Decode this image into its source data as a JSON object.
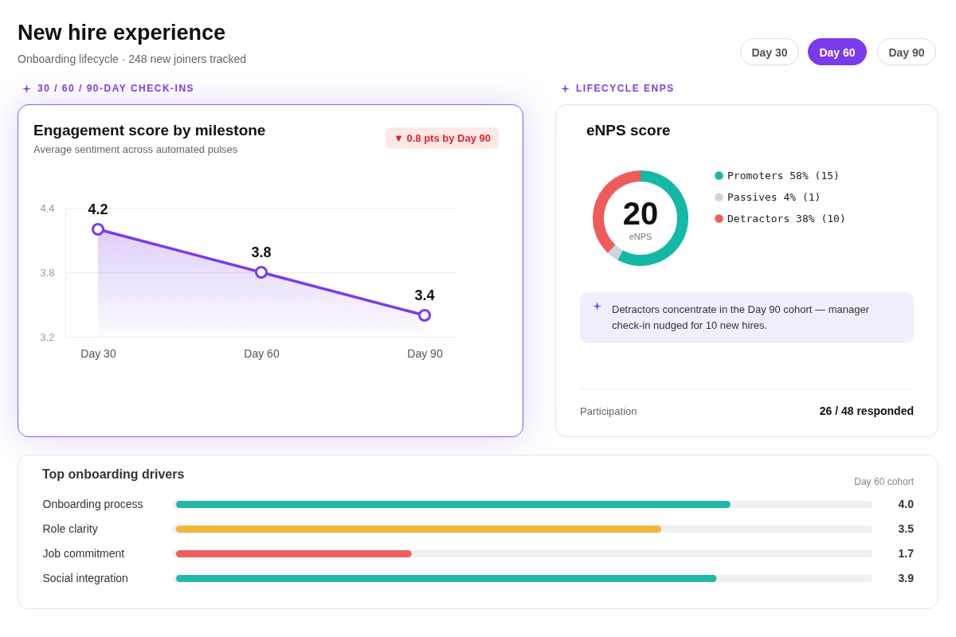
{
  "chart_data": [
    {
      "type": "other",
      "title": "New hire experience",
      "subtitle": "Onboarding lifecycle · 248 new joiners tracked",
      "annotations": [
        "Day 30",
        "Day 60",
        "Day 90",
        "30 / 60 / 90-DAY CHECK-INS",
        "LIFECYCLE ENPS"
      ]
    },
    {
      "type": "area",
      "title": "Engagement score by milestone",
      "subtitle": "Average sentiment across automated pulses",
      "categories": [
        "Day 30",
        "Day 60",
        "Day 90"
      ],
      "values": [
        4.2,
        3.8,
        3.4
      ],
      "color": "#7c3aed",
      "ylim": [
        3.2,
        4.4
      ],
      "yticks": [
        3.2,
        3.8,
        4.4
      ],
      "grid": "y",
      "marker": "circle",
      "data_labels": true,
      "annotations": [
        "▼ 0.8 pts by Day 90"
      ]
    },
    {
      "type": "donut",
      "title": "eNPS score",
      "categories": [
        "Promoters",
        "Passives",
        "Detractors"
      ],
      "values": [
        58,
        4,
        38
      ],
      "colors": [
        "#14b8a6",
        "#cbd5e1",
        "#ef5b5b"
      ],
      "value_labels": [
        "58% (15)",
        "4% (1)",
        "38% (10)"
      ],
      "legend": "right",
      "annotations": [
        "20",
        "eNPS",
        "Detractors concentrate in the Day 90 cohort — manager check-in nudged for 10 new hires.",
        "Participation",
        "26 / 48 responded"
      ]
    },
    {
      "type": "bar",
      "orientation": "horizontal",
      "title": "Top onboarding drivers",
      "categories": [
        "Onboarding process",
        "Role clarity",
        "Job commitment",
        "Social integration"
      ],
      "values": [
        4.0,
        3.5,
        1.7,
        3.9
      ],
      "colors": [
        "#22b8a7",
        "#f0b73a",
        "#ef5f5f",
        "#22b8a7"
      ],
      "xlim": [
        0,
        5
      ],
      "value_labels": [
        "4.0",
        "3.5",
        "1.7",
        "3.9"
      ],
      "annotations": [
        "Day 60 cohort"
      ]
    }
  ]
}
